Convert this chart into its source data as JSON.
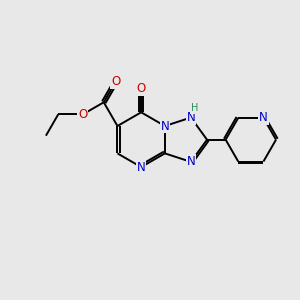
{
  "background_color": "#e8e8e8",
  "bond_color": "#000000",
  "bond_width": 1.4,
  "atom_colors": {
    "N": "#0000cc",
    "O": "#cc0000",
    "C": "#000000",
    "H": "#2e8b57"
  },
  "font_size_atom": 8.5,
  "font_size_h": 7.0
}
